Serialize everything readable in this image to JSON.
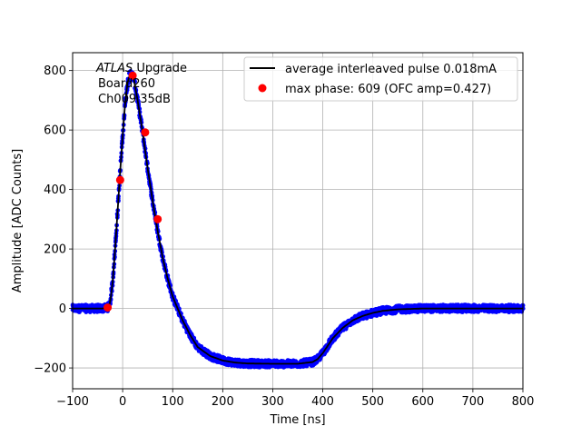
{
  "chart_data": {
    "type": "scatter",
    "xlabel": "Time [ns]",
    "ylabel": "Amplitude [ADC Counts]",
    "xlim": [
      -100,
      800
    ],
    "ylim": [
      -270,
      860
    ],
    "grid": true,
    "legend_placement": "top-right",
    "x_ticks": [
      -100,
      0,
      100,
      200,
      300,
      400,
      500,
      600,
      700,
      800
    ],
    "y_ticks": [
      -200,
      0,
      200,
      400,
      600,
      800
    ],
    "annotation": {
      "line1_italic": "ATLAS",
      "line1_rest": " Upgrade",
      "line2": "Board260",
      "line3": "Ch009 35dB"
    },
    "series": [
      {
        "name": "average interleaved pulse 0.018mA",
        "kind": "line",
        "color": "#000000",
        "x": [
          -100,
          -40,
          -30,
          -25,
          -20,
          -15,
          -10,
          -5,
          0,
          5,
          10,
          15,
          18,
          22,
          30,
          40,
          50,
          60,
          70,
          80,
          90,
          100,
          110,
          120,
          135,
          150,
          175,
          200,
          225,
          250,
          300,
          350,
          380,
          390,
          400,
          410,
          420,
          440,
          460,
          480,
          500,
          520,
          550,
          600,
          650,
          700,
          800
        ],
        "y": [
          0,
          0,
          3,
          20,
          90,
          200,
          330,
          460,
          580,
          690,
          760,
          790,
          792,
          775,
          700,
          590,
          470,
          360,
          260,
          170,
          100,
          40,
          0,
          -40,
          -90,
          -130,
          -160,
          -175,
          -182,
          -185,
          -186,
          -186,
          -180,
          -170,
          -150,
          -125,
          -100,
          -65,
          -40,
          -25,
          -15,
          -8,
          -3,
          0,
          0,
          0,
          0
        ]
      },
      {
        "name": "",
        "kind": "scatter-band",
        "color": "#0000ff",
        "note_noise_amplitude": 12
      },
      {
        "name": "max phase: 609 (OFC amp=0.427)",
        "kind": "scatter",
        "color": "#ff0000",
        "x": [
          -30,
          -5,
          20,
          45,
          70
        ],
        "y": [
          3,
          432,
          783,
          592,
          300
        ]
      }
    ]
  }
}
